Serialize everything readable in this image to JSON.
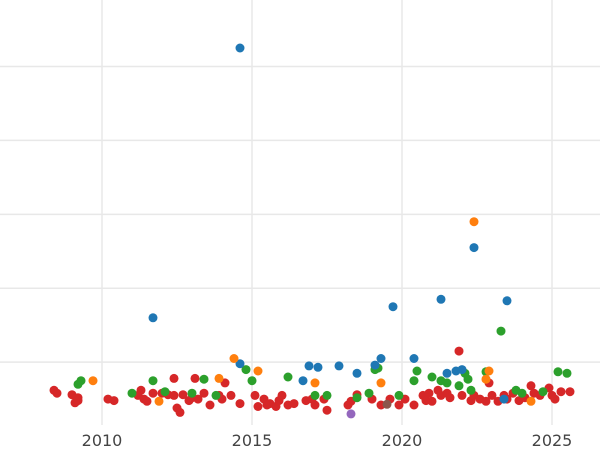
{
  "chart_data": {
    "type": "scatter",
    "title": "",
    "xlabel": "",
    "ylabel": "",
    "xlim": [
      2006.6,
      2026.6
    ],
    "ylim": [
      -0.35,
      5.4
    ],
    "x_ticks": [
      2010,
      2015,
      2020,
      2025
    ],
    "x_tick_labels": [
      "2010",
      "2015",
      "2020",
      "2025"
    ],
    "y_gridlines": [
      0.5,
      1.5,
      2.5,
      3.5,
      4.5
    ],
    "grid": true,
    "legend": "none",
    "series": [
      {
        "color": "#d62728",
        "points": [
          [
            2008.4,
            0.12
          ],
          [
            2008.5,
            0.08
          ],
          [
            2009.0,
            0.06
          ],
          [
            2009.1,
            -0.05
          ],
          [
            2009.2,
            0.02
          ],
          [
            2009.2,
            -0.02
          ],
          [
            2010.2,
            0.0
          ],
          [
            2010.4,
            -0.02
          ],
          [
            2011.2,
            0.05
          ],
          [
            2011.3,
            0.12
          ],
          [
            2011.4,
            0.0
          ],
          [
            2011.5,
            -0.03
          ],
          [
            2011.7,
            0.08
          ],
          [
            2012.0,
            0.08
          ],
          [
            2012.2,
            0.06
          ],
          [
            2012.4,
            0.28
          ],
          [
            2012.4,
            0.05
          ],
          [
            2012.5,
            -0.12
          ],
          [
            2012.6,
            -0.18
          ],
          [
            2012.7,
            0.06
          ],
          [
            2012.9,
            -0.02
          ],
          [
            2013.0,
            0.02
          ],
          [
            2013.1,
            0.28
          ],
          [
            2013.2,
            0.0
          ],
          [
            2013.4,
            0.08
          ],
          [
            2013.6,
            -0.08
          ],
          [
            2013.9,
            0.05
          ],
          [
            2014.0,
            0.0
          ],
          [
            2014.1,
            0.22
          ],
          [
            2014.3,
            0.05
          ],
          [
            2014.6,
            -0.06
          ],
          [
            2015.1,
            0.05
          ],
          [
            2015.2,
            -0.1
          ],
          [
            2015.4,
            0.0
          ],
          [
            2015.5,
            -0.08
          ],
          [
            2015.6,
            -0.06
          ],
          [
            2015.8,
            -0.1
          ],
          [
            2015.9,
            -0.02
          ],
          [
            2016.0,
            0.05
          ],
          [
            2016.2,
            -0.08
          ],
          [
            2016.4,
            -0.06
          ],
          [
            2016.8,
            -0.02
          ],
          [
            2017.0,
            0.0
          ],
          [
            2017.1,
            -0.08
          ],
          [
            2017.4,
            0.0
          ],
          [
            2017.5,
            -0.15
          ],
          [
            2018.2,
            -0.08
          ],
          [
            2018.3,
            -0.03
          ],
          [
            2018.5,
            0.06
          ],
          [
            2019.0,
            0.0
          ],
          [
            2019.3,
            -0.08
          ],
          [
            2019.6,
            0.0
          ],
          [
            2019.9,
            -0.08
          ],
          [
            2020.1,
            0.0
          ],
          [
            2020.4,
            -0.08
          ],
          [
            2020.7,
            0.05
          ],
          [
            2020.8,
            -0.02
          ],
          [
            2020.9,
            0.08
          ],
          [
            2021.0,
            -0.03
          ],
          [
            2021.2,
            0.12
          ],
          [
            2021.3,
            0.05
          ],
          [
            2021.5,
            0.08
          ],
          [
            2021.6,
            0.02
          ],
          [
            2021.9,
            0.65
          ],
          [
            2022.0,
            0.05
          ],
          [
            2022.3,
            -0.02
          ],
          [
            2022.4,
            0.05
          ],
          [
            2022.6,
            0.0
          ],
          [
            2022.8,
            -0.03
          ],
          [
            2022.9,
            0.22
          ],
          [
            2023.0,
            0.05
          ],
          [
            2023.2,
            -0.03
          ],
          [
            2023.4,
            0.05
          ],
          [
            2023.5,
            0.0
          ],
          [
            2023.7,
            0.08
          ],
          [
            2023.9,
            -0.02
          ],
          [
            2024.1,
            0.02
          ],
          [
            2024.3,
            0.18
          ],
          [
            2024.4,
            0.08
          ],
          [
            2024.6,
            0.05
          ],
          [
            2024.9,
            0.15
          ],
          [
            2025.0,
            0.05
          ],
          [
            2025.1,
            0.0
          ],
          [
            2025.3,
            0.1
          ],
          [
            2025.6,
            0.1
          ]
        ]
      },
      {
        "color": "#2ca02c",
        "points": [
          [
            2009.2,
            0.2
          ],
          [
            2009.3,
            0.25
          ],
          [
            2011.0,
            0.08
          ],
          [
            2011.7,
            0.25
          ],
          [
            2012.1,
            0.1
          ],
          [
            2013.0,
            0.08
          ],
          [
            2013.4,
            0.27
          ],
          [
            2013.8,
            0.05
          ],
          [
            2014.8,
            0.4
          ],
          [
            2015.0,
            0.25
          ],
          [
            2016.2,
            0.3
          ],
          [
            2017.1,
            0.05
          ],
          [
            2017.5,
            0.05
          ],
          [
            2018.5,
            0.02
          ],
          [
            2018.9,
            0.08
          ],
          [
            2019.1,
            0.4
          ],
          [
            2019.2,
            0.42
          ],
          [
            2019.9,
            0.05
          ],
          [
            2020.4,
            0.25
          ],
          [
            2020.5,
            0.38
          ],
          [
            2021.0,
            0.3
          ],
          [
            2021.3,
            0.25
          ],
          [
            2021.5,
            0.22
          ],
          [
            2021.9,
            0.18
          ],
          [
            2022.1,
            0.35
          ],
          [
            2022.2,
            0.27
          ],
          [
            2022.3,
            0.12
          ],
          [
            2022.8,
            0.37
          ],
          [
            2023.3,
            0.92
          ],
          [
            2023.8,
            0.12
          ],
          [
            2024.0,
            0.08
          ],
          [
            2024.7,
            0.1
          ],
          [
            2025.2,
            0.37
          ],
          [
            2025.5,
            0.35
          ]
        ]
      },
      {
        "color": "#1f77b4",
        "points": [
          [
            2011.7,
            1.1
          ],
          [
            2014.6,
            4.75
          ],
          [
            2014.6,
            0.48
          ],
          [
            2016.7,
            0.25
          ],
          [
            2016.9,
            0.45
          ],
          [
            2017.2,
            0.43
          ],
          [
            2017.9,
            0.45
          ],
          [
            2018.5,
            0.35
          ],
          [
            2019.1,
            0.46
          ],
          [
            2019.3,
            0.55
          ],
          [
            2019.7,
            1.25
          ],
          [
            2020.4,
            0.55
          ],
          [
            2021.3,
            1.35
          ],
          [
            2021.5,
            0.35
          ],
          [
            2021.8,
            0.38
          ],
          [
            2022.0,
            0.4
          ],
          [
            2022.4,
            2.05
          ],
          [
            2023.5,
            1.33
          ],
          [
            2023.4,
            0.0
          ]
        ]
      },
      {
        "color": "#ff7f0e",
        "points": [
          [
            2009.7,
            0.25
          ],
          [
            2011.9,
            -0.03
          ],
          [
            2013.9,
            0.28
          ],
          [
            2014.4,
            0.55
          ],
          [
            2015.2,
            0.38
          ],
          [
            2017.1,
            0.22
          ],
          [
            2019.3,
            0.22
          ],
          [
            2022.4,
            2.4
          ],
          [
            2022.8,
            0.27
          ],
          [
            2022.9,
            0.38
          ],
          [
            2024.3,
            -0.03
          ]
        ]
      },
      {
        "color": "#9467bd",
        "points": [
          [
            2018.3,
            -0.2
          ]
        ]
      },
      {
        "color": "#8c564b",
        "points": [
          [
            2019.5,
            -0.07
          ]
        ]
      }
    ]
  }
}
